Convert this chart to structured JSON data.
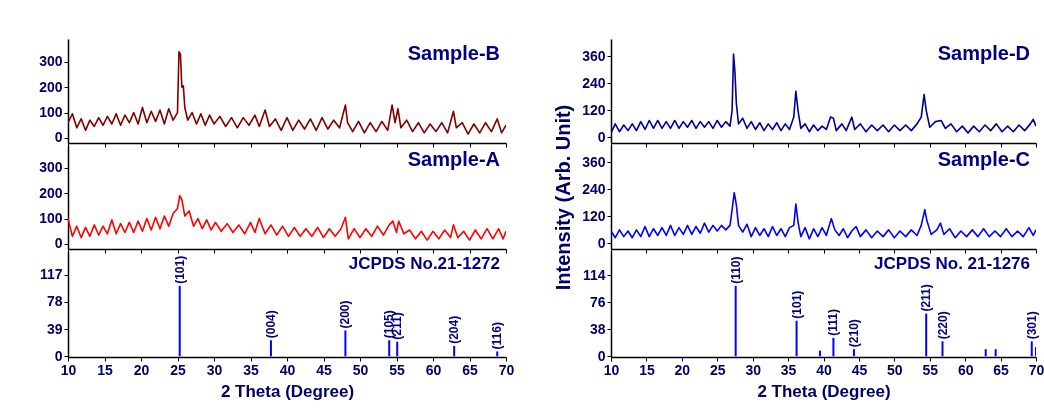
{
  "chart_data": [
    {
      "type": "line",
      "title": "Sample-B",
      "color": "#800000",
      "xlim": [
        10,
        70
      ],
      "xticks": [
        10,
        15,
        20,
        25,
        30,
        35,
        40,
        45,
        50,
        55,
        60,
        65,
        70
      ],
      "ylim": [
        -20,
        390
      ],
      "yticks": [
        0,
        100,
        200,
        300
      ],
      "tick_labels": "y",
      "x": [
        10,
        10.6,
        11.2,
        11.8,
        12.4,
        13,
        13.6,
        14.2,
        14.8,
        15.4,
        16,
        16.6,
        17.2,
        17.8,
        18.4,
        19,
        19.6,
        20.2,
        20.8,
        21.4,
        22,
        22.6,
        23.2,
        23.8,
        24.4,
        25,
        25.2,
        25.4,
        25.6,
        25.8,
        26,
        26.4,
        27,
        27.6,
        28.2,
        28.8,
        29.4,
        30,
        30.8,
        31.6,
        32.4,
        33.2,
        34,
        34.8,
        35.6,
        36.2,
        37,
        37.6,
        38.4,
        39.2,
        40,
        40.8,
        41.6,
        42.4,
        43.2,
        44,
        44.8,
        45.6,
        46.4,
        47.2,
        48,
        48.3,
        49,
        49.8,
        50.6,
        51.4,
        52.2,
        53,
        53.8,
        54.4,
        54.8,
        55.2,
        55.6,
        56.4,
        57.2,
        58,
        58.8,
        59.6,
        60.4,
        61.2,
        62,
        62.8,
        63.2,
        64,
        64.8,
        65.6,
        66.4,
        67.2,
        68,
        68.8,
        69.4,
        70
      ],
      "values": [
        60,
        95,
        40,
        75,
        30,
        70,
        45,
        80,
        50,
        85,
        55,
        95,
        50,
        90,
        60,
        100,
        55,
        120,
        60,
        105,
        65,
        110,
        55,
        115,
        70,
        100,
        340,
        330,
        200,
        205,
        120,
        70,
        100,
        55,
        95,
        50,
        90,
        55,
        85,
        45,
        80,
        40,
        80,
        50,
        90,
        45,
        110,
        45,
        75,
        30,
        80,
        30,
        70,
        35,
        75,
        30,
        80,
        35,
        70,
        40,
        130,
        60,
        25,
        65,
        20,
        60,
        25,
        65,
        30,
        130,
        60,
        115,
        40,
        70,
        25,
        60,
        20,
        55,
        25,
        60,
        20,
        105,
        40,
        60,
        15,
        55,
        20,
        60,
        25,
        75,
        20,
        50
      ]
    },
    {
      "type": "line",
      "title": "Sample-A",
      "color": "#ff0000",
      "xlim": [
        10,
        70
      ],
      "xticks": [
        10,
        15,
        20,
        25,
        30,
        35,
        40,
        45,
        50,
        55,
        60,
        65,
        70
      ],
      "ylim": [
        -20,
        390
      ],
      "yticks": [
        0,
        100,
        200,
        300
      ],
      "tick_labels": "y",
      "x": [
        10,
        10.6,
        11.2,
        11.8,
        12.4,
        13,
        13.6,
        14.2,
        14.8,
        15.4,
        16,
        16.6,
        17.2,
        17.8,
        18.4,
        19,
        19.6,
        20.2,
        20.8,
        21.4,
        22,
        22.6,
        23.2,
        23.8,
        24.4,
        25,
        25.3,
        25.6,
        26,
        26.6,
        27.2,
        27.8,
        28.4,
        29,
        29.6,
        30.2,
        31,
        31.8,
        32.6,
        33.4,
        34.2,
        35,
        35.6,
        36.2,
        37,
        37.8,
        38.6,
        39.4,
        40.2,
        41,
        41.8,
        42.6,
        43.4,
        44.2,
        45,
        45.8,
        46.6,
        47.4,
        48,
        48.4,
        49.2,
        50,
        50.8,
        51.6,
        52.4,
        53.2,
        54,
        54.5,
        55,
        55.3,
        56,
        56.8,
        57.6,
        58.4,
        59.2,
        60,
        60.8,
        61.6,
        62.4,
        62.8,
        63.4,
        64.2,
        65,
        65.8,
        66.6,
        67.4,
        68.2,
        69,
        69.6,
        70
      ],
      "values": [
        100,
        30,
        70,
        25,
        65,
        30,
        75,
        35,
        70,
        40,
        95,
        40,
        80,
        45,
        85,
        45,
        90,
        50,
        100,
        55,
        105,
        60,
        110,
        70,
        120,
        140,
        190,
        175,
        110,
        130,
        70,
        100,
        60,
        95,
        55,
        85,
        50,
        80,
        45,
        75,
        40,
        85,
        45,
        100,
        40,
        75,
        35,
        70,
        30,
        65,
        30,
        60,
        30,
        65,
        25,
        60,
        30,
        60,
        105,
        20,
        60,
        25,
        60,
        30,
        70,
        35,
        75,
        90,
        45,
        90,
        40,
        55,
        20,
        50,
        15,
        50,
        20,
        55,
        25,
        75,
        25,
        50,
        15,
        55,
        20,
        60,
        20,
        60,
        20,
        50
      ]
    },
    {
      "type": "bar",
      "title": "JCPDS No.21-1272",
      "color": "#0000ff",
      "xlabel": "2 Theta (Degree)",
      "xlim": [
        10,
        70
      ],
      "xticks": [
        10,
        15,
        20,
        25,
        30,
        35,
        40,
        45,
        50,
        55,
        60,
        65,
        70
      ],
      "ylim": [
        -1,
        151
      ],
      "yticks": [
        0,
        39,
        78,
        117
      ],
      "x": [
        25.3,
        37.8,
        48,
        54,
        55.1,
        62.9,
        68.8
      ],
      "values": [
        101,
        23,
        37,
        23,
        21,
        15,
        7
      ],
      "annotations": [
        {
          "text": "(101)",
          "x": 25.3,
          "y": 101
        },
        {
          "text": "(004)",
          "x": 37.8,
          "y": 23
        },
        {
          "text": "(200)",
          "x": 48,
          "y": 37
        },
        {
          "text": "(105)",
          "x": 54,
          "y": 23
        },
        {
          "text": "(211)",
          "x": 55.1,
          "y": 21
        },
        {
          "text": "(204)",
          "x": 62.9,
          "y": 15
        },
        {
          "text": "(116)",
          "x": 68.8,
          "y": 7
        }
      ]
    },
    {
      "type": "line",
      "title": "Sample-D",
      "color": "#000099",
      "xlim": [
        10,
        70
      ],
      "xticks": [
        10,
        15,
        20,
        25,
        30,
        35,
        40,
        45,
        50,
        55,
        60,
        65,
        70
      ],
      "ylim": [
        -25,
        437
      ],
      "yticks": [
        0,
        120,
        240,
        360
      ],
      "tick_labels": "y",
      "x": [
        10,
        10.6,
        11.2,
        11.8,
        12.4,
        13,
        13.6,
        14.2,
        14.8,
        15.4,
        16,
        16.6,
        17.2,
        17.8,
        18.4,
        19,
        19.6,
        20.2,
        20.8,
        21.4,
        22,
        22.6,
        23.2,
        23.8,
        24.4,
        25,
        25.6,
        26.2,
        26.8,
        27.1,
        27.3,
        27.5,
        27.7,
        28,
        28.6,
        29.2,
        29.8,
        30.4,
        31,
        31.6,
        32.2,
        32.8,
        33.4,
        34,
        34.6,
        35.2,
        35.8,
        36.1,
        36.4,
        36.8,
        37.4,
        38,
        38.6,
        39.2,
        39.8,
        40.4,
        41,
        41.4,
        41.8,
        42.6,
        43.2,
        44,
        44.4,
        45.2,
        46,
        46.8,
        47.6,
        48.4,
        49.2,
        50,
        50.8,
        51.6,
        52.4,
        53.2,
        53.8,
        54.2,
        54.5,
        55,
        55.8,
        56.6,
        57.2,
        58,
        58.8,
        59.6,
        60.4,
        61.2,
        62,
        62.8,
        63.6,
        64.4,
        65.2,
        66,
        66.8,
        67.6,
        68.4,
        69.2,
        69.6,
        70
      ],
      "values": [
        20,
        60,
        25,
        55,
        30,
        60,
        30,
        70,
        35,
        75,
        40,
        75,
        40,
        70,
        40,
        75,
        40,
        70,
        45,
        75,
        40,
        70,
        45,
        70,
        40,
        75,
        45,
        70,
        50,
        120,
        370,
        290,
        150,
        60,
        85,
        40,
        70,
        35,
        65,
        30,
        60,
        35,
        65,
        30,
        60,
        35,
        90,
        205,
        120,
        40,
        60,
        25,
        55,
        30,
        50,
        35,
        90,
        85,
        30,
        60,
        30,
        90,
        35,
        60,
        25,
        55,
        30,
        55,
        25,
        55,
        30,
        55,
        30,
        60,
        90,
        190,
        120,
        45,
        70,
        75,
        40,
        60,
        25,
        50,
        20,
        50,
        25,
        55,
        30,
        60,
        25,
        50,
        25,
        55,
        30,
        60,
        80,
        50
      ]
    },
    {
      "type": "line",
      "title": "Sample-C",
      "color": "#0000ff",
      "ylabel": "Intensity (Arb. Unit)",
      "xlim": [
        10,
        70
      ],
      "xticks": [
        10,
        15,
        20,
        25,
        30,
        35,
        40,
        45,
        50,
        55,
        60,
        65,
        70
      ],
      "ylim": [
        -25,
        437
      ],
      "yticks": [
        0,
        120,
        240,
        360
      ],
      "tick_labels": "y",
      "x": [
        10,
        10.6,
        11.2,
        11.8,
        12.4,
        13,
        13.6,
        14.2,
        14.8,
        15.4,
        16,
        16.6,
        17.2,
        17.8,
        18.4,
        19,
        19.6,
        20.2,
        20.8,
        21.4,
        22,
        22.6,
        23.2,
        23.8,
        24.4,
        25,
        25.6,
        26.2,
        26.8,
        27.1,
        27.4,
        27.7,
        28,
        28.6,
        29.2,
        29.8,
        30.4,
        31,
        31.6,
        32.2,
        32.8,
        33.4,
        34,
        34.6,
        35.2,
        35.8,
        36.1,
        36.4,
        36.8,
        37.4,
        38,
        38.6,
        39.2,
        39.8,
        40.4,
        41.1,
        41.6,
        42.2,
        42.8,
        43.4,
        44,
        44.6,
        45.2,
        46,
        46.8,
        47.6,
        48.4,
        49.2,
        50,
        50.8,
        51.6,
        52.4,
        53.2,
        53.8,
        54.3,
        54.6,
        55.2,
        56,
        56.5,
        57,
        57.8,
        58.6,
        59.4,
        60.2,
        61,
        61.8,
        62.6,
        63.4,
        64.2,
        65,
        65.8,
        66.6,
        67.4,
        68.2,
        69,
        69.6,
        70
      ],
      "values": [
        55,
        25,
        60,
        30,
        55,
        25,
        60,
        30,
        75,
        30,
        65,
        35,
        70,
        35,
        80,
        35,
        70,
        40,
        80,
        40,
        75,
        45,
        90,
        50,
        80,
        55,
        80,
        60,
        80,
        150,
        225,
        170,
        80,
        50,
        85,
        30,
        70,
        35,
        65,
        30,
        75,
        35,
        65,
        30,
        70,
        80,
        175,
        95,
        30,
        70,
        20,
        65,
        30,
        70,
        35,
        110,
        60,
        35,
        65,
        25,
        55,
        75,
        30,
        60,
        25,
        55,
        30,
        60,
        25,
        55,
        30,
        60,
        35,
        80,
        150,
        100,
        40,
        60,
        90,
        40,
        65,
        25,
        55,
        30,
        60,
        30,
        65,
        30,
        55,
        30,
        65,
        30,
        55,
        30,
        70,
        35,
        60
      ]
    },
    {
      "type": "bar",
      "title": "JCPDS No. 21-1276",
      "color": "#0000ff",
      "xlabel": "2 Theta (Degree)",
      "xlim": [
        10,
        70
      ],
      "xticks": [
        10,
        15,
        20,
        25,
        30,
        35,
        40,
        45,
        50,
        55,
        60,
        65,
        70
      ],
      "ylim": [
        -1,
        148
      ],
      "yticks": [
        0,
        38,
        76,
        114
      ],
      "x": [
        27.6,
        36.2,
        39.5,
        41.4,
        44.3,
        54.5,
        56.8,
        62.9,
        64.3,
        69.4,
        70
      ],
      "values": [
        99,
        50,
        8,
        26,
        10,
        60,
        21,
        10,
        10,
        21,
        13
      ],
      "annotations": [
        {
          "text": "(110)",
          "x": 27.6,
          "y": 99
        },
        {
          "text": "(101)",
          "x": 36.2,
          "y": 50
        },
        {
          "text": "(111)",
          "x": 41.4,
          "y": 26
        },
        {
          "text": "(210)",
          "x": 44.3,
          "y": 10
        },
        {
          "text": "(211)",
          "x": 54.5,
          "y": 60
        },
        {
          "text": "(220)",
          "x": 56.8,
          "y": 21
        },
        {
          "text": "(301)",
          "x": 69.4,
          "y": 21
        }
      ]
    }
  ]
}
